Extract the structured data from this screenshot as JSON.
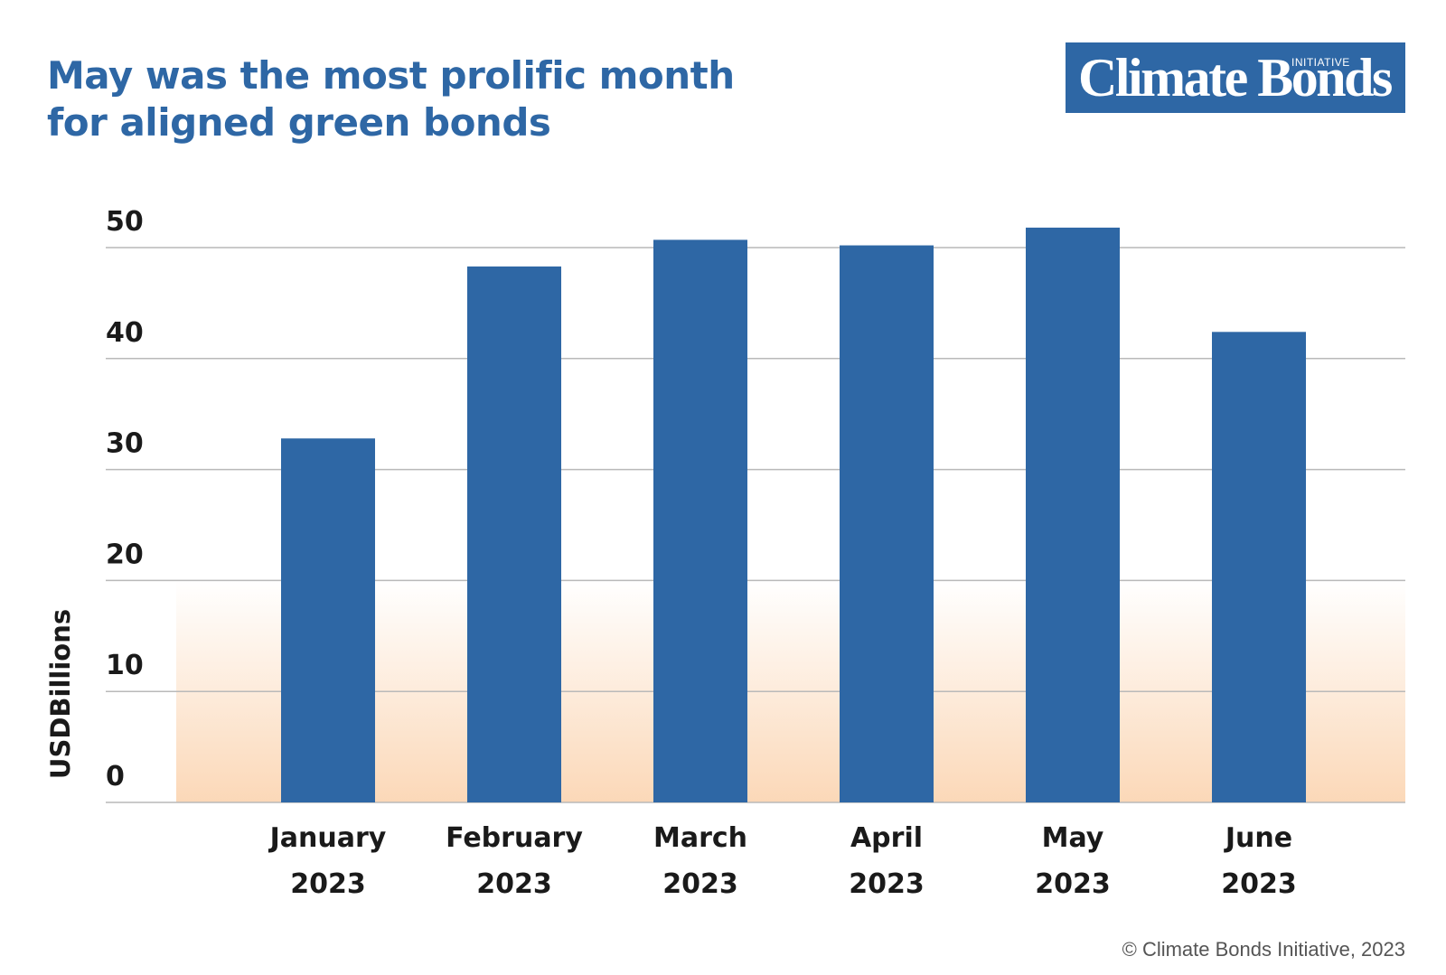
{
  "header": {
    "title_line1": "May was the most prolific month",
    "title_line2": "for aligned green bonds"
  },
  "logo": {
    "name": "Climate Bonds",
    "superscript": "INITIATIVE"
  },
  "footer": {
    "copyright": "© Climate Bonds Initiative, 2023"
  },
  "colors": {
    "bar": "#2e67a5",
    "title": "#2e67a5",
    "grid": "#b9b9b9",
    "gradient_bottom": "#fbd6b4",
    "text": "#1a1a1a"
  },
  "chart_data": {
    "type": "bar",
    "categories": [
      [
        "January",
        "2023"
      ],
      [
        "February",
        "2023"
      ],
      [
        "March",
        "2023"
      ],
      [
        "April",
        "2023"
      ],
      [
        "May",
        "2023"
      ],
      [
        "June",
        "2023"
      ]
    ],
    "values": [
      32.8,
      48.3,
      50.7,
      50.2,
      51.8,
      42.4
    ],
    "ylabel": "USDBillions",
    "yticks": [
      0,
      10,
      20,
      30,
      40,
      50
    ],
    "ylim": [
      0,
      50
    ],
    "grid": true,
    "legend": "none"
  }
}
